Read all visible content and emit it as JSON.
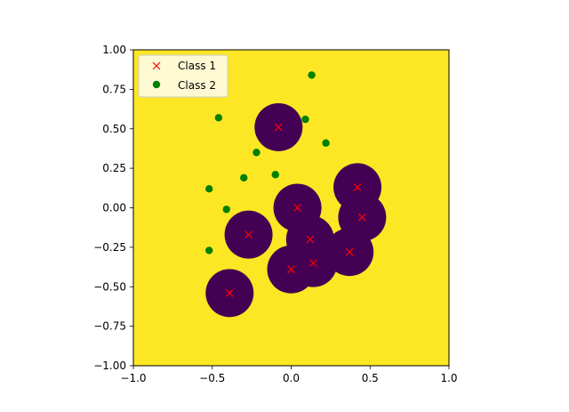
{
  "chart_data": {
    "type": "scatter",
    "title": "",
    "xlabel": "",
    "ylabel": "",
    "xlim": [
      -1.0,
      1.0
    ],
    "ylim": [
      -1.0,
      1.0
    ],
    "xticks": [
      "−1.0",
      "−0.5",
      "0.0",
      "0.5",
      "1.0"
    ],
    "yticks": [
      "−1.00",
      "−0.75",
      "−0.50",
      "−0.25",
      "0.00",
      "0.25",
      "0.50",
      "0.75",
      "1.00"
    ],
    "xtick_values": [
      -1.0,
      -0.5,
      0.0,
      0.5,
      1.0
    ],
    "ytick_values": [
      -1.0,
      -0.75,
      -0.5,
      -0.25,
      0.0,
      0.25,
      0.5,
      0.75,
      1.0
    ],
    "background_color": "#fde725",
    "region_color": "#440154",
    "grid": false,
    "legend_position": "top-left",
    "series": [
      {
        "name": "Class 1",
        "marker": "x",
        "color": "#ff0000",
        "points": [
          {
            "x": -0.08,
            "y": 0.51
          },
          {
            "x": 0.42,
            "y": 0.13
          },
          {
            "x": 0.04,
            "y": 0.0
          },
          {
            "x": 0.45,
            "y": -0.06
          },
          {
            "x": -0.27,
            "y": -0.17
          },
          {
            "x": 0.12,
            "y": -0.2
          },
          {
            "x": 0.37,
            "y": -0.28
          },
          {
            "x": 0.14,
            "y": -0.35
          },
          {
            "x": 0.0,
            "y": -0.39
          },
          {
            "x": -0.39,
            "y": -0.54
          }
        ]
      },
      {
        "name": "Class 2",
        "marker": "o",
        "color": "#008000",
        "points": [
          {
            "x": 0.13,
            "y": 0.84
          },
          {
            "x": -0.46,
            "y": 0.57
          },
          {
            "x": 0.09,
            "y": 0.56
          },
          {
            "x": 0.22,
            "y": 0.41
          },
          {
            "x": -0.22,
            "y": 0.35
          },
          {
            "x": -0.3,
            "y": 0.19
          },
          {
            "x": -0.1,
            "y": 0.21
          },
          {
            "x": -0.52,
            "y": 0.12
          },
          {
            "x": -0.41,
            "y": -0.01
          },
          {
            "x": -0.52,
            "y": -0.27
          }
        ]
      }
    ]
  }
}
